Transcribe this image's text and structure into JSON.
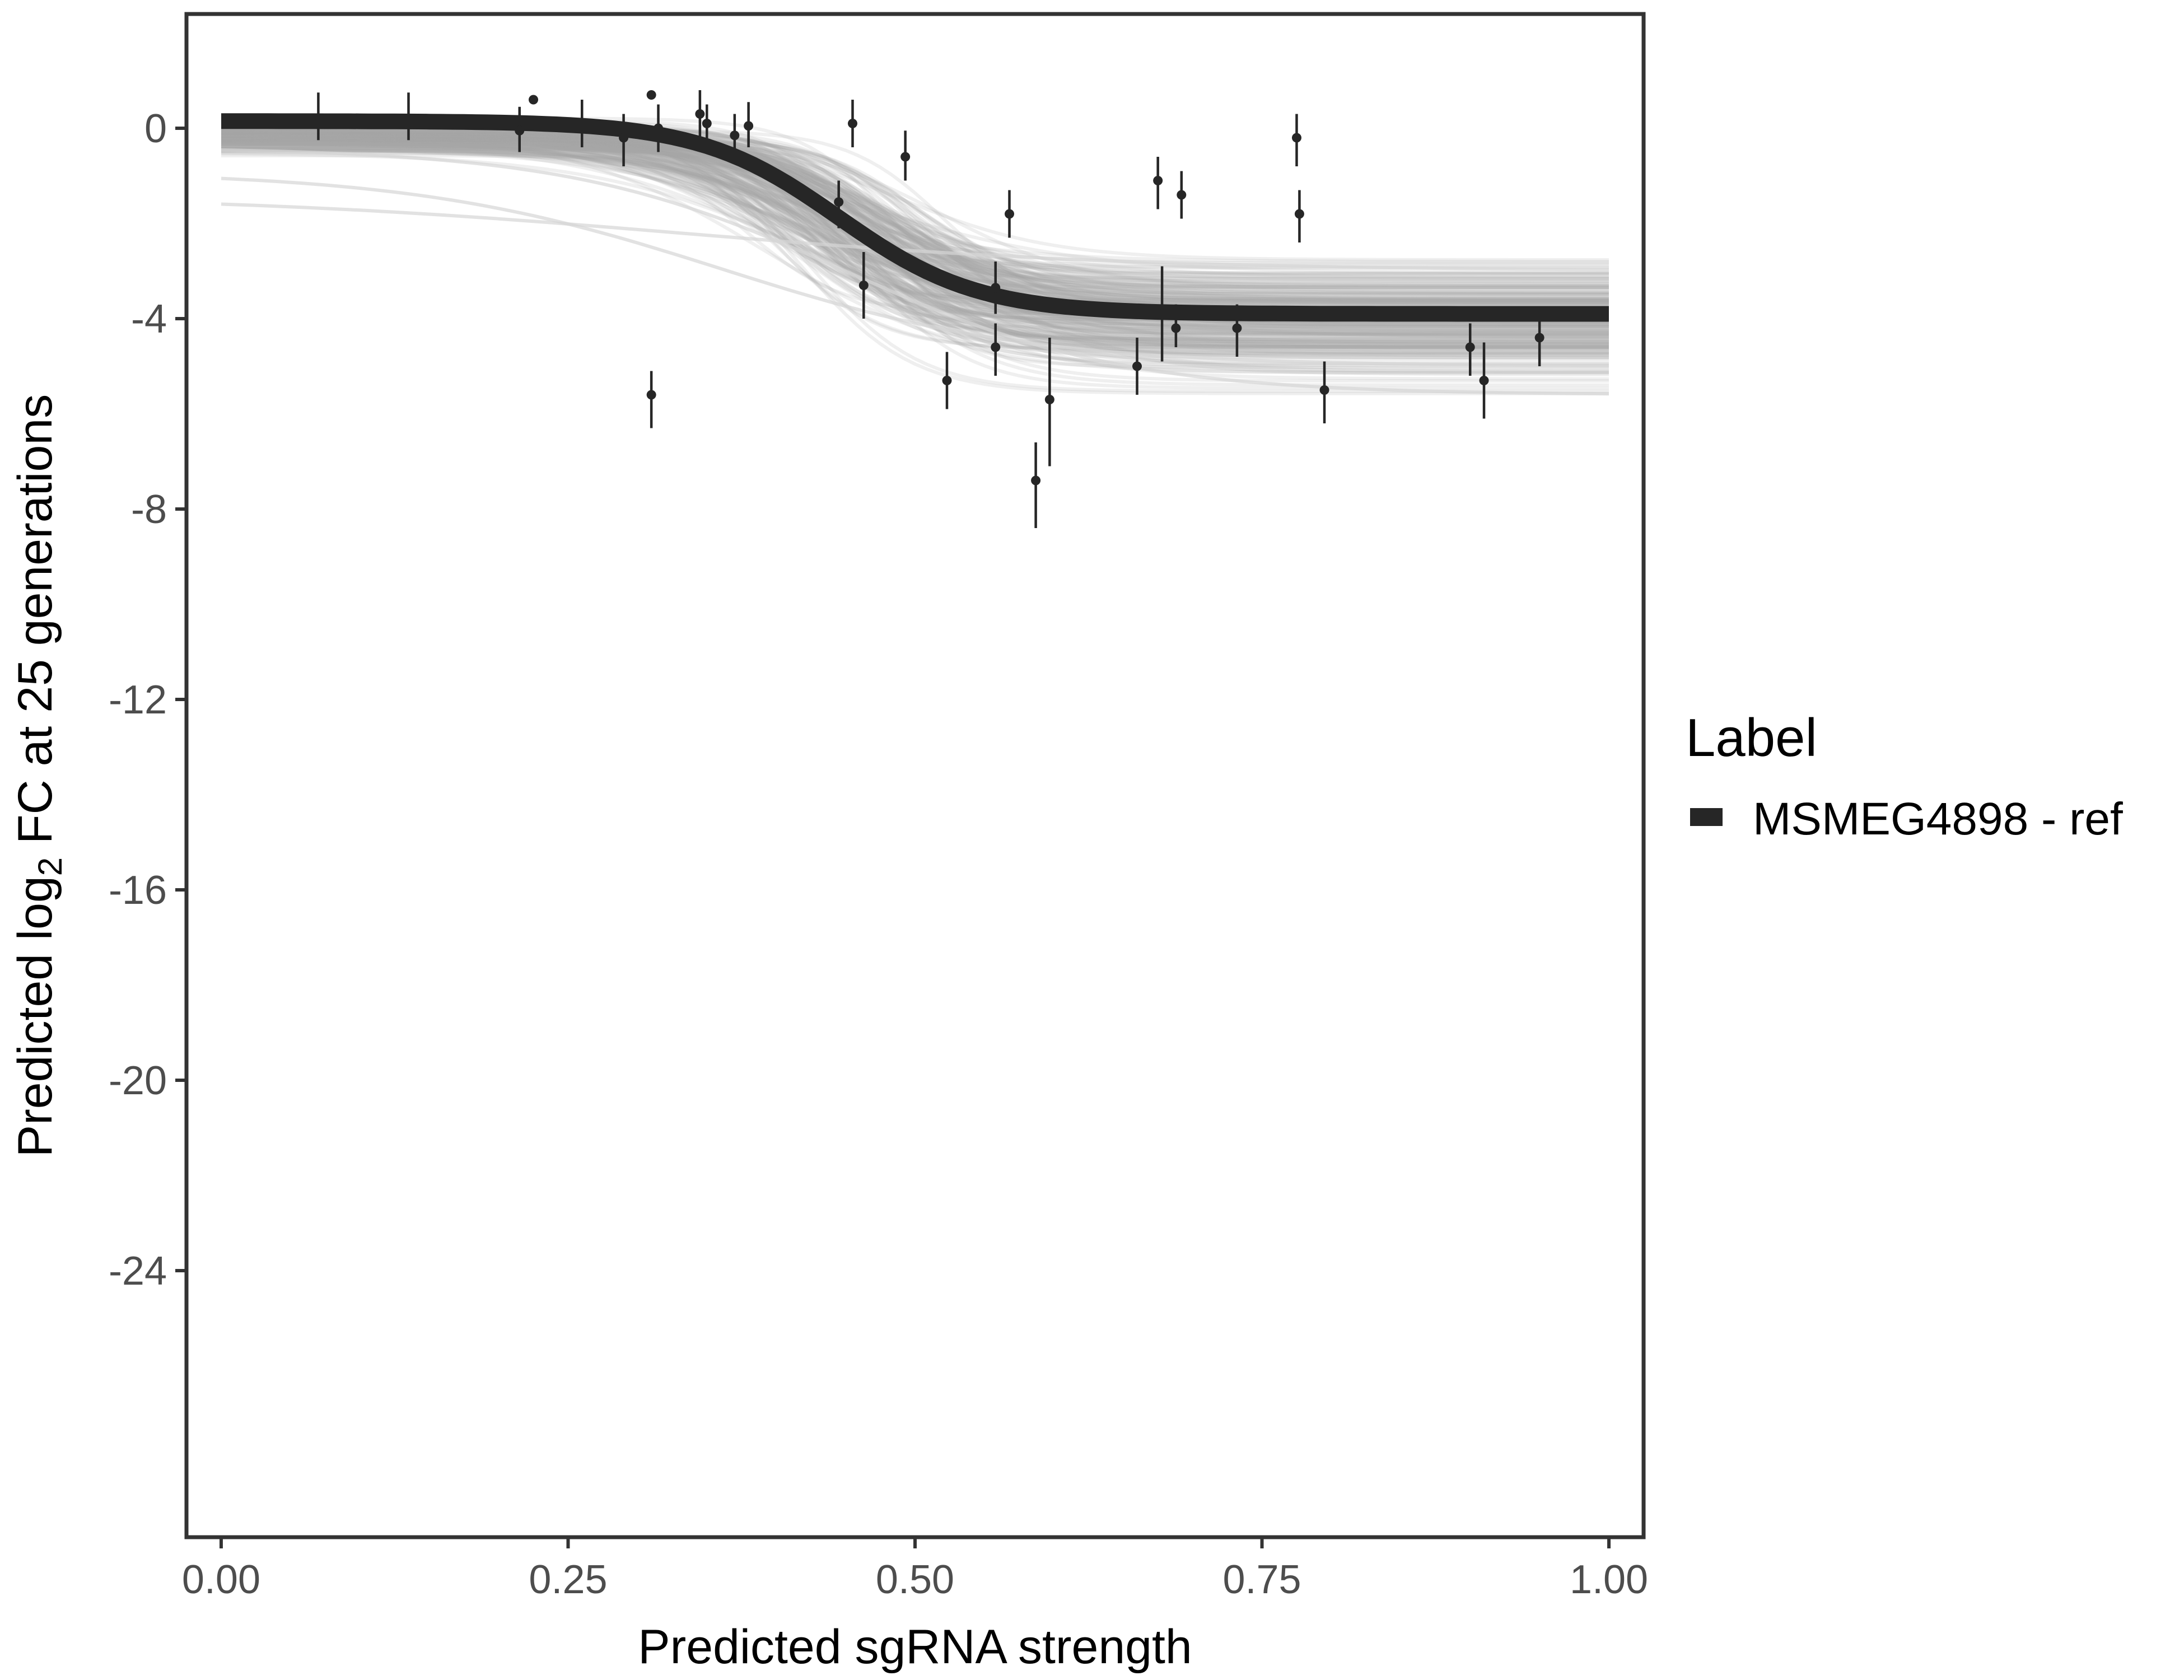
{
  "chart_data": {
    "type": "line",
    "title": "",
    "xlabel": "Predicted sgRNA strength",
    "ylabel_parts": {
      "prefix": "Predicted  log",
      "subscript": "2",
      "suffix": " FC at 25 generations"
    },
    "xlim": [
      -0.025,
      1.025
    ],
    "ylim": [
      -29.6,
      2.4
    ],
    "x_ticks": [
      0.0,
      0.25,
      0.5,
      0.75,
      1.0
    ],
    "x_tick_labels": [
      "0.00",
      "0.25",
      "0.50",
      "0.75",
      "1.00"
    ],
    "y_ticks": [
      0,
      -4,
      -8,
      -12,
      -16,
      -20,
      -24
    ],
    "y_tick_labels": [
      "0",
      "-4",
      "-8",
      "-12",
      "-16",
      "-20",
      "-24"
    ],
    "grid": false,
    "legend": {
      "title": "Label",
      "position": "right",
      "entries": [
        {
          "label": "MSMEG4898 - ref",
          "color": "#262626"
        }
      ]
    },
    "series": [
      {
        "name": "MSMEG4898 - ref",
        "kind": "fitted_curve",
        "model": "logistic",
        "upper": 0.15,
        "lower": -3.9,
        "midpoint": 0.445,
        "slope": 20,
        "color": "#262626"
      },
      {
        "name": "posterior draws",
        "kind": "curve_ensemble",
        "upper_range": [
          -0.6,
          0.3
        ],
        "lower_range": [
          -5.8,
          -2.4
        ],
        "midpoint_range": [
          0.37,
          0.53
        ],
        "slope_range": [
          12,
          30
        ],
        "color": "#a9a9a9"
      },
      {
        "name": "observed guides",
        "kind": "points_with_error",
        "color": "#262626",
        "points": [
          {
            "x": 0.07,
            "y": 0.1,
            "ymin": -0.25,
            "ymax": 0.75
          },
          {
            "x": 0.135,
            "y": 0.1,
            "ymin": -0.25,
            "ymax": 0.75
          },
          {
            "x": 0.215,
            "y": -0.05,
            "ymin": -0.5,
            "ymax": 0.45
          },
          {
            "x": 0.225,
            "y": 0.6,
            "ymin": 0.6,
            "ymax": 0.6
          },
          {
            "x": 0.26,
            "y": 0.05,
            "ymin": -0.4,
            "ymax": 0.6
          },
          {
            "x": 0.29,
            "y": -0.2,
            "ymin": -0.8,
            "ymax": 0.3
          },
          {
            "x": 0.31,
            "y": 0.7,
            "ymin": 0.7,
            "ymax": 0.7
          },
          {
            "x": 0.31,
            "y": -5.6,
            "ymin": -6.3,
            "ymax": -5.1
          },
          {
            "x": 0.315,
            "y": 0.0,
            "ymin": -0.5,
            "ymax": 0.5
          },
          {
            "x": 0.345,
            "y": 0.3,
            "ymin": -0.2,
            "ymax": 0.8
          },
          {
            "x": 0.35,
            "y": 0.1,
            "ymin": -0.3,
            "ymax": 0.5
          },
          {
            "x": 0.37,
            "y": -0.15,
            "ymin": -0.6,
            "ymax": 0.3
          },
          {
            "x": 0.38,
            "y": 0.05,
            "ymin": -0.4,
            "ymax": 0.55
          },
          {
            "x": 0.445,
            "y": -1.55,
            "ymin": -2.1,
            "ymax": -1.1
          },
          {
            "x": 0.455,
            "y": 0.1,
            "ymin": -0.4,
            "ymax": 0.6
          },
          {
            "x": 0.463,
            "y": -3.3,
            "ymin": -4.0,
            "ymax": -2.6
          },
          {
            "x": 0.493,
            "y": -0.6,
            "ymin": -1.1,
            "ymax": -0.05
          },
          {
            "x": 0.523,
            "y": -5.3,
            "ymin": -5.9,
            "ymax": -4.7
          },
          {
            "x": 0.558,
            "y": -3.35,
            "ymin": -3.9,
            "ymax": -2.8
          },
          {
            "x": 0.558,
            "y": -4.6,
            "ymin": -5.2,
            "ymax": -4.1
          },
          {
            "x": 0.568,
            "y": -1.8,
            "ymin": -2.3,
            "ymax": -1.3
          },
          {
            "x": 0.587,
            "y": -7.4,
            "ymin": -8.4,
            "ymax": -6.6
          },
          {
            "x": 0.597,
            "y": -5.7,
            "ymin": -7.1,
            "ymax": -4.4
          },
          {
            "x": 0.66,
            "y": -5.0,
            "ymin": -5.6,
            "ymax": -4.4
          },
          {
            "x": 0.675,
            "y": -1.1,
            "ymin": -1.7,
            "ymax": -0.6
          },
          {
            "x": 0.678,
            "y": -3.9,
            "ymin": -4.9,
            "ymax": -2.9
          },
          {
            "x": 0.688,
            "y": -4.2,
            "ymin": -4.6,
            "ymax": -3.7
          },
          {
            "x": 0.692,
            "y": -1.4,
            "ymin": -1.9,
            "ymax": -0.9
          },
          {
            "x": 0.732,
            "y": -4.2,
            "ymin": -4.8,
            "ymax": -3.7
          },
          {
            "x": 0.775,
            "y": -0.2,
            "ymin": -0.8,
            "ymax": 0.3
          },
          {
            "x": 0.777,
            "y": -1.8,
            "ymin": -2.4,
            "ymax": -1.3
          },
          {
            "x": 0.795,
            "y": -5.5,
            "ymin": -6.2,
            "ymax": -4.9
          },
          {
            "x": 0.9,
            "y": -4.6,
            "ymin": -5.2,
            "ymax": -4.1
          },
          {
            "x": 0.91,
            "y": -5.3,
            "ymin": -6.1,
            "ymax": -4.5
          },
          {
            "x": 0.95,
            "y": -4.4,
            "ymin": -5.0,
            "ymax": -3.9
          }
        ]
      }
    ]
  }
}
